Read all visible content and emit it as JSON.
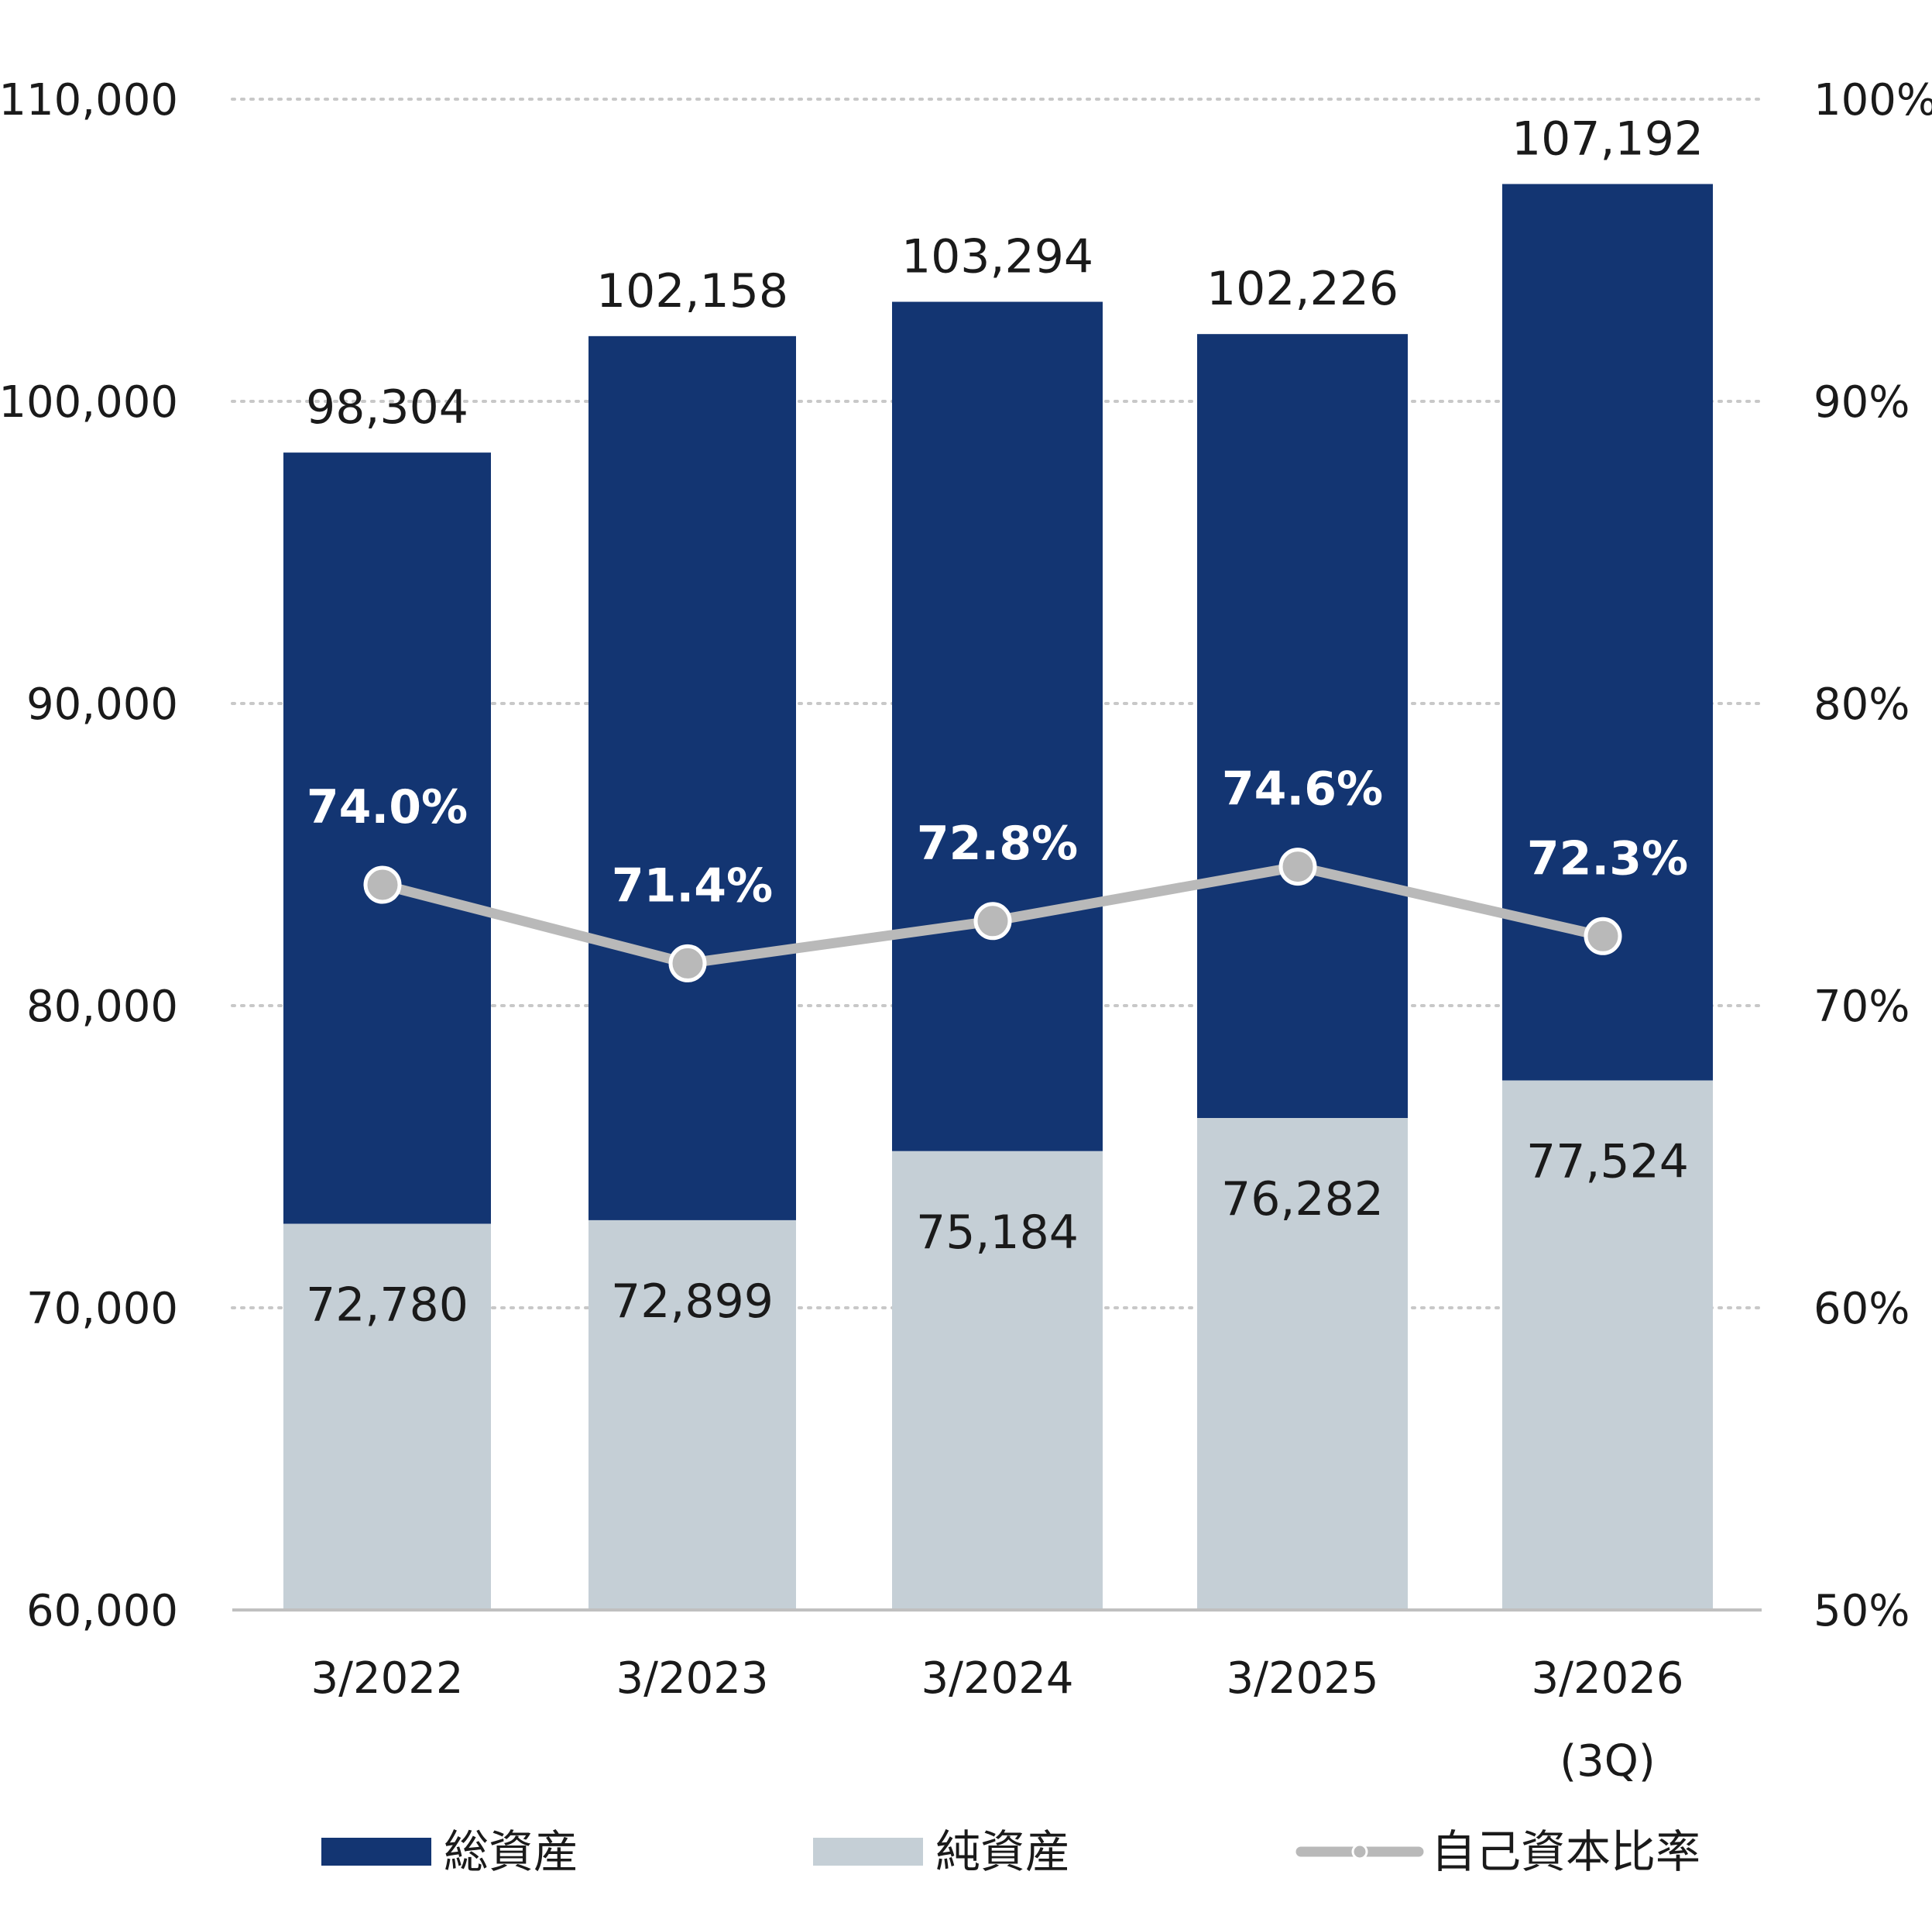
{
  "chart_data": {
    "type": "bar",
    "stacked": false,
    "categories": [
      "3/2022",
      "3/2023",
      "3/2024",
      "3/2025",
      "3/2026"
    ],
    "category_sublabels": [
      "",
      "",
      "",
      "",
      "(3Q)"
    ],
    "series": [
      {
        "name": "総資産",
        "type": "bar",
        "axis": "left",
        "color": "#133572",
        "values": [
          98304,
          102158,
          103294,
          102226,
          107192
        ],
        "labels": [
          "98,304",
          "102,158",
          "103,294",
          "102,226",
          "107,192"
        ]
      },
      {
        "name": "純資産",
        "type": "bar",
        "axis": "left",
        "color": "#c5cfd6",
        "values": [
          72780,
          72899,
          75184,
          76282,
          77524
        ],
        "labels": [
          "72,780",
          "72,899",
          "75,184",
          "76,282",
          "77,524"
        ]
      },
      {
        "name": "自己資本比率",
        "type": "line",
        "axis": "right",
        "color": "#b9b9b9",
        "values": [
          74.0,
          71.4,
          72.8,
          74.6,
          72.3
        ],
        "labels": [
          "74.0%",
          "71.4%",
          "72.8%",
          "74.6%",
          "72.3%"
        ]
      }
    ],
    "y_left": {
      "min": 60000,
      "max": 110000,
      "ticks": [
        60000,
        70000,
        80000,
        90000,
        100000,
        110000
      ],
      "tick_labels": [
        "60,000",
        "70,000",
        "80,000",
        "90,000",
        "100,000",
        "110,000"
      ]
    },
    "y_right": {
      "min": 50,
      "max": 100,
      "ticks": [
        50,
        60,
        70,
        80,
        90,
        100
      ],
      "tick_labels": [
        "50%",
        "60%",
        "70%",
        "80%",
        "90%",
        "100%"
      ]
    },
    "grid": "dotted-horizontal",
    "legend_position": "bottom"
  }
}
